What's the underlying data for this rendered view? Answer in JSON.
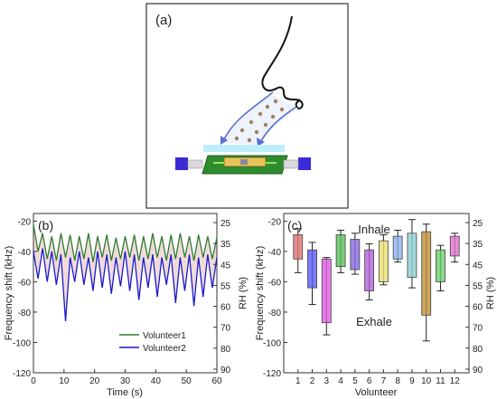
{
  "panels": {
    "a": {
      "label": "(a)"
    },
    "b": {
      "label": "(b)"
    },
    "c": {
      "label": "(c)",
      "inhale_text": "Inhale",
      "exhale_text": "Exhale"
    }
  },
  "colors": {
    "volunteer1": "#2e7d32",
    "volunteer2": "#1a1acc",
    "trace_fill": "#b03a2e",
    "device_green": "#2e8b2e",
    "electrode_blue": "#3a2bd6",
    "arrow_blue": "#5a6fd0"
  },
  "chart_data": [
    {
      "type": "line",
      "xlabel": "Time (s)",
      "ylabel": "Frequency shift (kHz)",
      "y2label": "RH (%)",
      "xlim": [
        0,
        60
      ],
      "ylim": [
        -120,
        -15
      ],
      "y2_ticks": [
        25,
        35,
        45,
        55,
        60,
        70,
        80,
        90
      ],
      "x_ticks": [
        0,
        10,
        20,
        30,
        40,
        50,
        60
      ],
      "y_ticks": [
        -20,
        -40,
        -60,
        -80,
        -100,
        -120
      ],
      "legend_position": "bottom-right",
      "series": [
        {
          "name": "Volunteer1",
          "x": [
            0,
            1.5,
            3,
            4.5,
            6,
            7.5,
            9,
            10.5,
            12,
            13.5,
            15,
            16.5,
            18,
            19.5,
            21,
            22.5,
            24,
            25.5,
            27,
            28.5,
            30,
            31.5,
            33,
            34.5,
            36,
            37.5,
            39,
            40.5,
            42,
            43.5,
            45,
            46.5,
            48,
            49.5,
            51,
            52.5,
            54,
            55.5,
            57,
            58.5,
            60
          ],
          "y": [
            -22,
            -40,
            -28,
            -45,
            -30,
            -46,
            -28,
            -44,
            -29,
            -46,
            -30,
            -45,
            -28,
            -47,
            -30,
            -44,
            -29,
            -46,
            -31,
            -45,
            -30,
            -44,
            -29,
            -46,
            -30,
            -45,
            -28,
            -44,
            -30,
            -46,
            -29,
            -45,
            -28,
            -44,
            -30,
            -46,
            -29,
            -44,
            -30,
            -45,
            -31
          ]
        },
        {
          "name": "Volunteer2",
          "x": [
            0,
            1.5,
            3,
            4.5,
            6,
            7.5,
            9,
            10.5,
            12,
            13.5,
            15,
            16.5,
            18,
            19.5,
            21,
            22.5,
            24,
            25.5,
            27,
            28.5,
            30,
            31.5,
            33,
            34.5,
            36,
            37.5,
            39,
            40.5,
            42,
            43.5,
            45,
            46.5,
            48,
            49.5,
            51,
            52.5,
            54,
            55.5,
            57,
            58.5,
            60
          ],
          "y": [
            -40,
            -58,
            -38,
            -60,
            -40,
            -62,
            -42,
            -86,
            -44,
            -60,
            -40,
            -62,
            -44,
            -66,
            -40,
            -64,
            -42,
            -68,
            -44,
            -63,
            -40,
            -66,
            -42,
            -72,
            -44,
            -64,
            -42,
            -70,
            -44,
            -62,
            -42,
            -74,
            -44,
            -66,
            -42,
            -76,
            -44,
            -70,
            -42,
            -64,
            -44
          ]
        }
      ]
    },
    {
      "type": "box",
      "xlabel": "Volunteer",
      "ylabel": "Frequency shift (kHz)",
      "y2label": "RH (%)",
      "ylim": [
        -120,
        -15
      ],
      "y_ticks": [
        -20,
        -40,
        -60,
        -80,
        -100,
        -120
      ],
      "y2_ticks": [
        25,
        35,
        45,
        55,
        60,
        70,
        80,
        90
      ],
      "categories": [
        "1",
        "2",
        "3",
        "4",
        "5",
        "6",
        "7",
        "8",
        "9",
        "10",
        "11",
        "12"
      ],
      "boxes": [
        {
          "top": -29,
          "bottom": -45,
          "whisker_top": -25,
          "whisker_bottom": -54,
          "color": "#e07070"
        },
        {
          "top": -39,
          "bottom": -64,
          "whisker_top": -34,
          "whisker_bottom": -75,
          "color": "#5a5af0"
        },
        {
          "top": -45,
          "bottom": -87,
          "whisker_top": -44,
          "whisker_bottom": -95,
          "color": "#e05ae0"
        },
        {
          "top": -29,
          "bottom": -50,
          "whisker_top": -26,
          "whisker_bottom": -54,
          "color": "#58c058"
        },
        {
          "top": -32,
          "bottom": -52,
          "whisker_top": -28,
          "whisker_bottom": -55,
          "color": "#8a6ae0"
        },
        {
          "top": -39,
          "bottom": -66,
          "whisker_top": -35,
          "whisker_bottom": -72,
          "color": "#b060d8"
        },
        {
          "top": -33,
          "bottom": -60,
          "whisker_top": -29,
          "whisker_bottom": -62,
          "color": "#e8e070"
        },
        {
          "top": -30,
          "bottom": -45,
          "whisker_top": -26,
          "whisker_bottom": -47,
          "color": "#8ab0ea"
        },
        {
          "top": -28,
          "bottom": -57,
          "whisker_top": -19,
          "whisker_bottom": -64,
          "color": "#8cd0d0"
        },
        {
          "top": -27,
          "bottom": -82,
          "whisker_top": -22,
          "whisker_bottom": -99,
          "color": "#c0903a"
        },
        {
          "top": -39,
          "bottom": -60,
          "whisker_top": -36,
          "whisker_bottom": -66,
          "color": "#6ad06a"
        },
        {
          "top": -30,
          "bottom": -43,
          "whisker_top": -28,
          "whisker_bottom": -47,
          "color": "#e070c8"
        }
      ]
    }
  ]
}
